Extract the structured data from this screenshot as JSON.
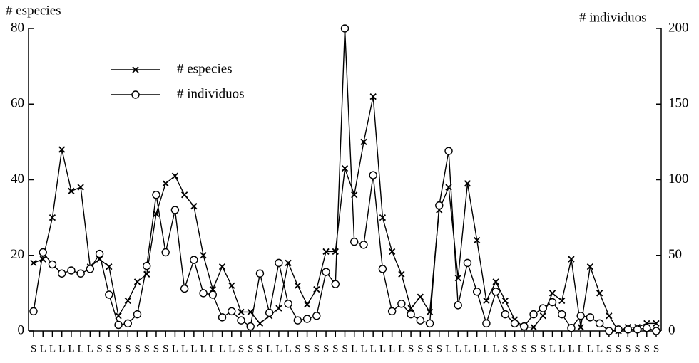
{
  "chart_data": {
    "type": "line",
    "y_label": "# especies",
    "y2_label": "# individuos",
    "categories": [
      "S",
      "L",
      "L",
      "L",
      "L",
      "L",
      "L",
      "S",
      "S",
      "S",
      "S",
      "S",
      "S",
      "S",
      "S",
      "L",
      "L",
      "L",
      "L",
      "L",
      "L",
      "L",
      "S",
      "S",
      "S",
      "L",
      "L",
      "L",
      "S",
      "S",
      "S",
      "S",
      "S",
      "S",
      "L",
      "L",
      "L",
      "L",
      "L",
      "L",
      "S",
      "S",
      "S",
      "S",
      "L",
      "L",
      "L",
      "L",
      "L",
      "L",
      "S",
      "S",
      "S",
      "S",
      "S",
      "L",
      "L",
      "L",
      "L",
      "L",
      "L",
      "S",
      "S",
      "S",
      "S",
      "S",
      "S"
    ],
    "series": [
      {
        "name": "# especies",
        "color": "#000000",
        "marker": "x",
        "values": [
          18,
          19,
          30,
          48,
          37,
          38,
          17,
          19,
          17,
          4,
          8,
          13,
          15,
          31,
          39,
          41,
          36,
          33,
          20,
          11,
          17,
          12,
          5,
          5,
          2,
          4,
          6,
          18,
          12,
          7,
          11,
          21,
          21,
          43,
          36,
          50,
          62,
          30,
          21,
          15,
          6,
          9,
          5,
          32,
          38,
          14,
          39,
          24,
          8,
          13,
          8,
          3,
          1,
          1,
          4,
          10,
          8,
          19,
          1,
          17,
          10,
          4,
          0,
          1,
          1,
          2,
          2
        ]
      },
      {
        "name": "# individuos",
        "color": "#000000",
        "marker": "o",
        "axis": "y2",
        "values": [
          13,
          52,
          44,
          38,
          40,
          38,
          41,
          51,
          24,
          4,
          5,
          11,
          43,
          90,
          52,
          80,
          28,
          47,
          25,
          24,
          9,
          13,
          7,
          3,
          38,
          12,
          45,
          18,
          7,
          8,
          10,
          39,
          31,
          200,
          59,
          57,
          103,
          41,
          13,
          18,
          11,
          7,
          5,
          83,
          119,
          17,
          45,
          26,
          5,
          26,
          11,
          5,
          3,
          11,
          15,
          19,
          11,
          2,
          10,
          9,
          5,
          0,
          1,
          1,
          1,
          2,
          0
        ]
      }
    ],
    "ylim": [
      0,
      80
    ],
    "yticks": [
      0,
      20,
      40,
      60,
      80
    ],
    "y2lim": [
      0,
      200
    ],
    "y2ticks": [
      0,
      50,
      100,
      150,
      200
    ],
    "legend": "top-left"
  }
}
